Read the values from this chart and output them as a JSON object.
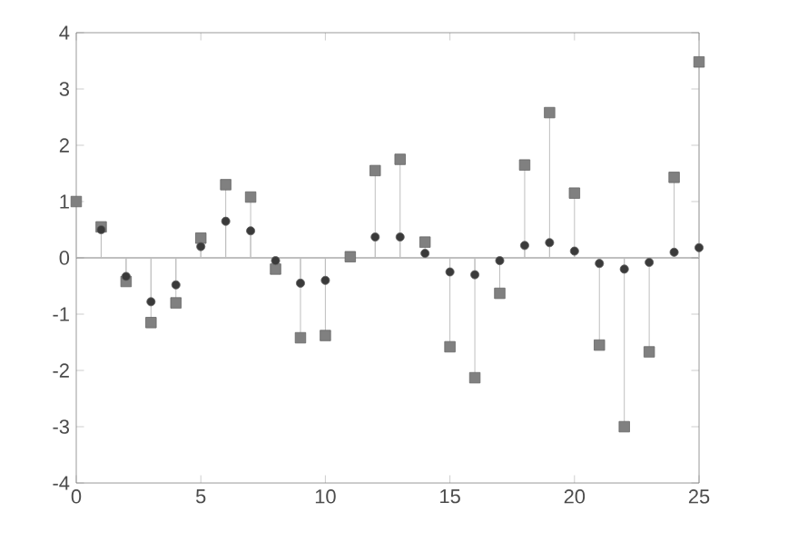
{
  "chart_data": {
    "type": "lollipop",
    "x": [
      0,
      1,
      2,
      3,
      4,
      5,
      6,
      7,
      8,
      9,
      10,
      11,
      12,
      13,
      14,
      15,
      16,
      17,
      18,
      19,
      20,
      21,
      22,
      23,
      24,
      25
    ],
    "series": [
      {
        "color": "#808080",
        "marker": "square",
        "values": [
          1.0,
          0.55,
          -0.42,
          -1.15,
          -0.8,
          0.35,
          1.3,
          1.08,
          -0.2,
          -1.42,
          -1.38,
          0.02,
          1.55,
          1.75,
          0.28,
          -1.58,
          -2.13,
          -0.63,
          1.65,
          2.58,
          1.15,
          -1.55,
          -3.0,
          -1.67,
          1.43,
          3.48
        ]
      },
      {
        "color": "#3a3a3a",
        "marker": "circle",
        "values": [
          null,
          0.5,
          -0.33,
          -0.78,
          -0.48,
          0.2,
          0.65,
          0.48,
          -0.05,
          -0.45,
          -0.4,
          null,
          0.37,
          0.37,
          0.08,
          -0.25,
          -0.3,
          -0.05,
          0.22,
          0.27,
          0.12,
          -0.1,
          -0.2,
          -0.08,
          0.1,
          0.18
        ]
      }
    ],
    "xlim": [
      0,
      25
    ],
    "ylim": [
      -4,
      4
    ],
    "xticks": [
      0,
      5,
      10,
      15,
      20,
      25
    ],
    "yticks": [
      -4,
      -3,
      -2,
      -1,
      0,
      1,
      2,
      3,
      4
    ],
    "ref_lines": [
      {
        "axis": "y",
        "value": 0,
        "color": "#808080"
      }
    ]
  }
}
